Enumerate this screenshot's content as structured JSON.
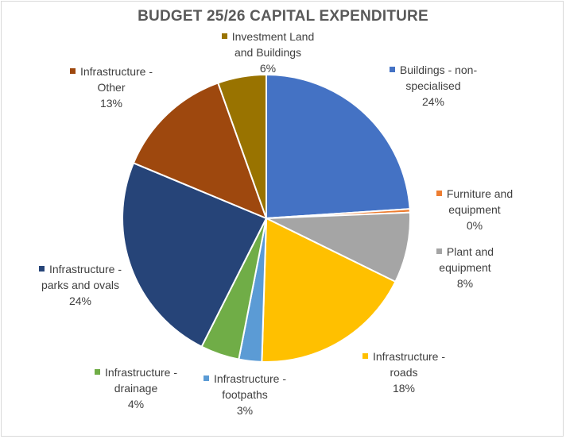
{
  "chart_data": {
    "type": "pie",
    "title": "BUDGET 25/26 CAPITAL EXPENDITURE",
    "slices": [
      {
        "key": "buildings",
        "label_lines": [
          "Buildings - non-",
          "specialised"
        ],
        "pct_label": "24%",
        "value": 24.2,
        "color": "#4472C4"
      },
      {
        "key": "furniture",
        "label_lines": [
          "Furniture and",
          "equipment"
        ],
        "pct_label": "0%",
        "value": 0.4,
        "color": "#ED7D31"
      },
      {
        "key": "plant",
        "label_lines": [
          "Plant and",
          "equipment"
        ],
        "pct_label": "8%",
        "value": 8.0,
        "color": "#A5A5A5"
      },
      {
        "key": "roads",
        "label_lines": [
          "Infrastructure -",
          "roads"
        ],
        "pct_label": "18%",
        "value": 18.4,
        "color": "#FFC000"
      },
      {
        "key": "footpaths",
        "label_lines": [
          "Infrastructure -",
          "footpaths"
        ],
        "pct_label": "3%",
        "value": 2.6,
        "color": "#5B9BD5"
      },
      {
        "key": "drainage",
        "label_lines": [
          "Infrastructure -",
          "drainage"
        ],
        "pct_label": "4%",
        "value": 4.4,
        "color": "#70AD47"
      },
      {
        "key": "parks",
        "label_lines": [
          "Infrastructure -",
          "parks and ovals"
        ],
        "pct_label": "24%",
        "value": 24.1,
        "color": "#264478"
      },
      {
        "key": "other",
        "label_lines": [
          "Infrastructure -",
          "Other"
        ],
        "pct_label": "13%",
        "value": 13.4,
        "color": "#9E480E"
      },
      {
        "key": "land",
        "label_lines": [
          "Investment Land",
          "and Buildings"
        ],
        "pct_label": "6%",
        "value": 5.5,
        "color": "#997300"
      }
    ]
  }
}
